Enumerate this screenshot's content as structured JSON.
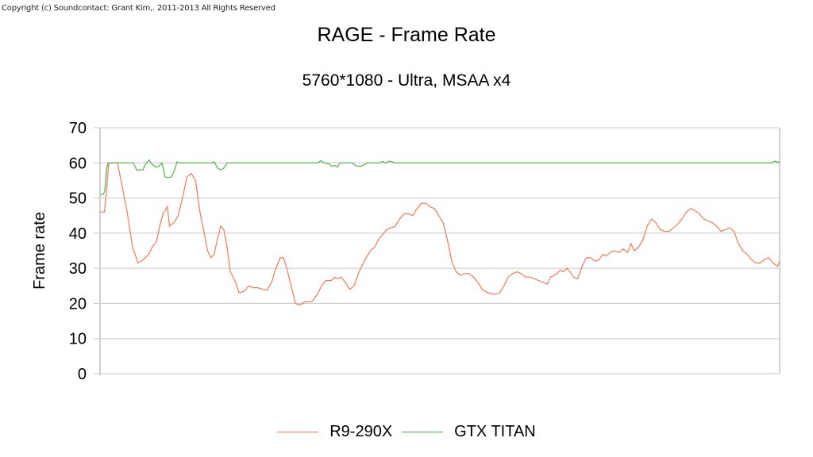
{
  "copyright": "Copyright (c) Soundcontact: Grant Kim,. 2011-2013 All Rights Reserved",
  "colors": {
    "r9": "#f07a5a",
    "titan": "#4db44d",
    "grid": "#c8c8c8"
  },
  "chart_data": {
    "type": "line",
    "title": "RAGE - Frame Rate",
    "subtitle": "5760*1080 - Ultra, MSAA x4",
    "xlabel": "",
    "ylabel": "Frame rate",
    "ylim": [
      0,
      70
    ],
    "yticks": [
      0,
      10,
      20,
      30,
      40,
      50,
      60,
      70
    ],
    "grid": true,
    "legend_position": "bottom",
    "x_note": "x is sample position (0-856), no tick labels shown",
    "series": [
      {
        "name": "R9-290X",
        "color": "#f07a5a",
        "points": [
          [
            0,
            46
          ],
          [
            4,
            46
          ],
          [
            6,
            52
          ],
          [
            8,
            60
          ],
          [
            12,
            60
          ],
          [
            16,
            60
          ],
          [
            20,
            54
          ],
          [
            25,
            46
          ],
          [
            30,
            36
          ],
          [
            35,
            31.5
          ],
          [
            40,
            32.5
          ],
          [
            45,
            34
          ],
          [
            48,
            36
          ],
          [
            52,
            37.5
          ],
          [
            55,
            42
          ],
          [
            58,
            45.5
          ],
          [
            62,
            47.5
          ],
          [
            64,
            42
          ],
          [
            68,
            43
          ],
          [
            72,
            45
          ],
          [
            76,
            50
          ],
          [
            80,
            56
          ],
          [
            84,
            57
          ],
          [
            88,
            55
          ],
          [
            92,
            46
          ],
          [
            96,
            40
          ],
          [
            99,
            35
          ],
          [
            102,
            33
          ],
          [
            105,
            34
          ],
          [
            108,
            38
          ],
          [
            111,
            42
          ],
          [
            114,
            41
          ],
          [
            117,
            36
          ],
          [
            120,
            29
          ],
          [
            125,
            26
          ],
          [
            128,
            23
          ],
          [
            133,
            23.5
          ],
          [
            137,
            25
          ],
          [
            141,
            24.5
          ],
          [
            145,
            24.5
          ],
          [
            150,
            24
          ],
          [
            154,
            23.8
          ],
          [
            158,
            26
          ],
          [
            162,
            30
          ],
          [
            166,
            33
          ],
          [
            169,
            33
          ],
          [
            172,
            30
          ],
          [
            176,
            25
          ],
          [
            180,
            20
          ],
          [
            184,
            19.5
          ],
          [
            189,
            20.5
          ],
          [
            195,
            20.5
          ],
          [
            200,
            22.5
          ],
          [
            204,
            25
          ],
          [
            208,
            26.5
          ],
          [
            213,
            26.5
          ],
          [
            216,
            27.5
          ],
          [
            219,
            27
          ],
          [
            222,
            27.5
          ],
          [
            226,
            26
          ],
          [
            230,
            24
          ],
          [
            234,
            25
          ],
          [
            238,
            28.5
          ],
          [
            241,
            30.5
          ],
          [
            245,
            33
          ],
          [
            249,
            35
          ],
          [
            253,
            36
          ],
          [
            256,
            38
          ],
          [
            260,
            39.5
          ],
          [
            264,
            41
          ],
          [
            268,
            41.5
          ],
          [
            272,
            42
          ],
          [
            276,
            44
          ],
          [
            280,
            45.5
          ],
          [
            284,
            45.5
          ],
          [
            288,
            45
          ],
          [
            292,
            47
          ],
          [
            296,
            48.5
          ],
          [
            300,
            48.5
          ],
          [
            304,
            47.5
          ],
          [
            308,
            47
          ],
          [
            312,
            45
          ],
          [
            316,
            43
          ],
          [
            320,
            38
          ],
          [
            324,
            32
          ],
          [
            328,
            29
          ],
          [
            332,
            28
          ],
          [
            336,
            28.5
          ],
          [
            340,
            28.5
          ],
          [
            344,
            27.5
          ],
          [
            348,
            26
          ],
          [
            352,
            24
          ],
          [
            356,
            23.2
          ],
          [
            360,
            22.8
          ],
          [
            364,
            22.6
          ],
          [
            368,
            23
          ],
          [
            372,
            25
          ],
          [
            376,
            27.5
          ],
          [
            380,
            28.5
          ],
          [
            384,
            29
          ],
          [
            388,
            28.5
          ],
          [
            392,
            27.5
          ],
          [
            396,
            27.5
          ],
          [
            400,
            27
          ],
          [
            404,
            26.5
          ],
          [
            408,
            26
          ],
          [
            412,
            25.5
          ],
          [
            415,
            27.5
          ],
          [
            418,
            28
          ],
          [
            421,
            28.5
          ],
          [
            424,
            29.5
          ],
          [
            427,
            29
          ],
          [
            430,
            30
          ],
          [
            433,
            29
          ],
          [
            436,
            27.5
          ],
          [
            440,
            27
          ],
          [
            444,
            30.5
          ],
          [
            448,
            33
          ],
          [
            452,
            33
          ],
          [
            456,
            32
          ],
          [
            460,
            32.5
          ],
          [
            463,
            34
          ],
          [
            466,
            33.5
          ],
          [
            470,
            34.5
          ],
          [
            474,
            35
          ],
          [
            478,
            34.5
          ],
          [
            482,
            35.5
          ],
          [
            486,
            34.5
          ],
          [
            489,
            37
          ],
          [
            492,
            35
          ],
          [
            496,
            36
          ],
          [
            500,
            38
          ],
          [
            504,
            42
          ],
          [
            508,
            44
          ],
          [
            512,
            43
          ],
          [
            516,
            41
          ],
          [
            520,
            40.5
          ],
          [
            524,
            40.5
          ],
          [
            528,
            41.5
          ],
          [
            532,
            42.5
          ],
          [
            536,
            44
          ],
          [
            540,
            46
          ],
          [
            544,
            47
          ],
          [
            548,
            46.5
          ],
          [
            552,
            45.5
          ],
          [
            556,
            44
          ],
          [
            560,
            43.5
          ],
          [
            564,
            43
          ],
          [
            568,
            42
          ],
          [
            572,
            40.5
          ],
          [
            576,
            41
          ],
          [
            580,
            41.5
          ],
          [
            584,
            40.5
          ],
          [
            588,
            37
          ],
          [
            592,
            35
          ],
          [
            596,
            34
          ],
          [
            600,
            32.5
          ],
          [
            604,
            31.5
          ],
          [
            608,
            31.5
          ],
          [
            612,
            32.5
          ],
          [
            616,
            33
          ],
          [
            620,
            31.5
          ],
          [
            624,
            30.5
          ],
          [
            626,
            32
          ]
        ]
      },
      {
        "name": "GTX TITAN",
        "color": "#4db44d",
        "points": [
          [
            0,
            51
          ],
          [
            4,
            51
          ],
          [
            6,
            52
          ],
          [
            8,
            58
          ],
          [
            10,
            60
          ],
          [
            16,
            60
          ],
          [
            42,
            60
          ],
          [
            46,
            58
          ],
          [
            54,
            58
          ],
          [
            58,
            60
          ],
          [
            62,
            60.8
          ],
          [
            64,
            60
          ],
          [
            66,
            59.5
          ],
          [
            70,
            58.8
          ],
          [
            74,
            59
          ],
          [
            78,
            60
          ],
          [
            82,
            56
          ],
          [
            86,
            55.8
          ],
          [
            90,
            56
          ],
          [
            94,
            58
          ],
          [
            97,
            60.3
          ],
          [
            100,
            60
          ],
          [
            140,
            60
          ],
          [
            144,
            60.3
          ],
          [
            148,
            58.5
          ],
          [
            152,
            58
          ],
          [
            156,
            58.5
          ],
          [
            160,
            60
          ],
          [
            274,
            60
          ],
          [
            278,
            60.6
          ],
          [
            282,
            60
          ],
          [
            288,
            59.8
          ],
          [
            292,
            59
          ],
          [
            296,
            59.3
          ],
          [
            299,
            58.8
          ],
          [
            302,
            60
          ],
          [
            318,
            60
          ],
          [
            322,
            59.2
          ],
          [
            328,
            59
          ],
          [
            333,
            59.5
          ],
          [
            336,
            60
          ],
          [
            352,
            60
          ],
          [
            356,
            60.4
          ],
          [
            360,
            60
          ],
          [
            364,
            60.5
          ],
          [
            368,
            60.3
          ],
          [
            372,
            60
          ],
          [
            846,
            60
          ],
          [
            850,
            60.5
          ],
          [
            853,
            60.2
          ],
          [
            856,
            60.3
          ]
        ]
      }
    ]
  },
  "legend": {
    "items": [
      {
        "label": "R9-290X"
      },
      {
        "label": "GTX TITAN"
      }
    ]
  }
}
